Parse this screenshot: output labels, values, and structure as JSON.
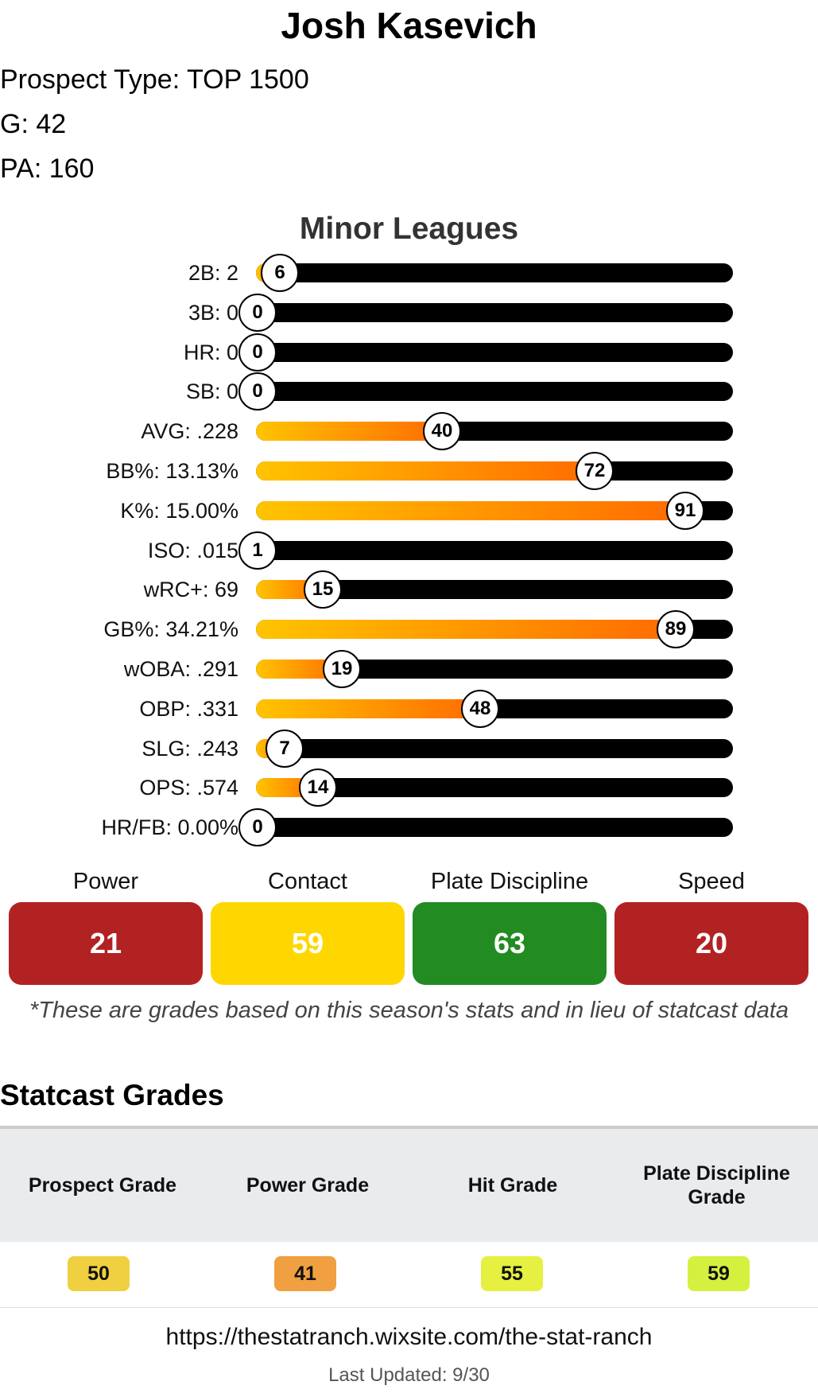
{
  "player": {
    "name": "Josh Kasevich",
    "prospect_type": "Prospect Type: TOP 1500",
    "games": "G: 42",
    "plate_appearances": "PA: 160"
  },
  "minor_leagues": {
    "title": "Minor Leagues",
    "rows": [
      {
        "label": "2B: 2",
        "value": 6
      },
      {
        "label": "3B: 0",
        "value": 0
      },
      {
        "label": "HR: 0",
        "value": 0
      },
      {
        "label": "SB: 0",
        "value": 0
      },
      {
        "label": "AVG: .228",
        "value": 40
      },
      {
        "label": "BB%: 13.13%",
        "value": 72
      },
      {
        "label": "K%: 15.00%",
        "value": 91
      },
      {
        "label": "ISO: .015",
        "value": 1
      },
      {
        "label": "wRC+: 69",
        "value": 15
      },
      {
        "label": "GB%: 34.21%",
        "value": 89
      },
      {
        "label": "wOBA: .291",
        "value": 19
      },
      {
        "label": "OBP: .331",
        "value": 48
      },
      {
        "label": "SLG: .243",
        "value": 7
      },
      {
        "label": "OPS: .574",
        "value": 14
      },
      {
        "label": "HR/FB: 0.00%",
        "value": 0
      }
    ],
    "scale_max": 100
  },
  "season_grades": [
    {
      "label": "Power",
      "value": "21",
      "color": "#b22222"
    },
    {
      "label": "Contact",
      "value": "59",
      "color": "#ffd700"
    },
    {
      "label": "Plate Discipline",
      "value": "63",
      "color": "#228b22"
    },
    {
      "label": "Speed",
      "value": "20",
      "color": "#b22222"
    }
  ],
  "disclaimer": "*These are grades based on this season's stats and in lieu of statcast data",
  "statcast": {
    "title": "Statcast Grades",
    "headers": [
      "Prospect Grade",
      "Power Grade",
      "Hit Grade",
      "Plate Discipline Grade"
    ],
    "values": [
      {
        "value": "50",
        "color": "#f0d040"
      },
      {
        "value": "41",
        "color": "#f0a040"
      },
      {
        "value": "55",
        "color": "#e6f040"
      },
      {
        "value": "59",
        "color": "#d6f040"
      }
    ]
  },
  "footer": {
    "url": "https://thestatranch.wixsite.com/the-stat-ranch",
    "last_updated": "Last Updated: 9/30"
  }
}
